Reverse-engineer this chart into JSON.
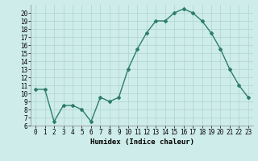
{
  "x": [
    0,
    1,
    2,
    3,
    4,
    5,
    6,
    7,
    8,
    9,
    10,
    11,
    12,
    13,
    14,
    15,
    16,
    17,
    18,
    19,
    20,
    21,
    22,
    23
  ],
  "y": [
    10.5,
    10.5,
    6.5,
    8.5,
    8.5,
    8.0,
    6.5,
    9.5,
    9.0,
    9.5,
    13.0,
    15.5,
    17.5,
    19.0,
    19.0,
    20.0,
    20.5,
    20.0,
    19.0,
    17.5,
    15.5,
    13.0,
    11.0,
    9.5
  ],
  "line_color": "#2e7d6e",
  "marker": "D",
  "marker_size": 2.0,
  "line_width": 1.0,
  "xlabel": "Humidex (Indice chaleur)",
  "xlim": [
    -0.5,
    23.5
  ],
  "ylim": [
    6,
    21
  ],
  "yticks": [
    6,
    7,
    8,
    9,
    10,
    11,
    12,
    13,
    14,
    15,
    16,
    17,
    18,
    19,
    20
  ],
  "xticks": [
    0,
    1,
    2,
    3,
    4,
    5,
    6,
    7,
    8,
    9,
    10,
    11,
    12,
    13,
    14,
    15,
    16,
    17,
    18,
    19,
    20,
    21,
    22,
    23
  ],
  "bg_color": "#ceecea",
  "grid_color": "#aed4d0",
  "label_fontsize": 6.5,
  "tick_fontsize": 5.5
}
